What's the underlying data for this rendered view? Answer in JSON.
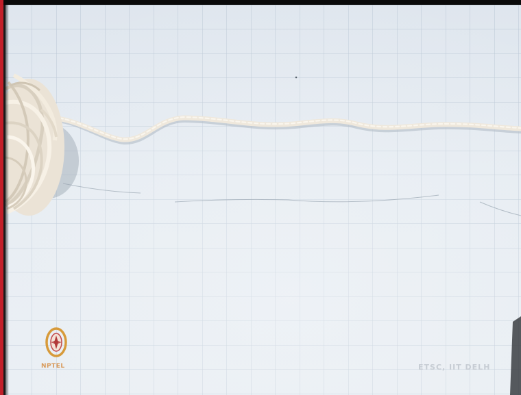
{
  "watermark": {
    "text": "ETSC, IIT DELH"
  },
  "logo": {
    "label": "NPTEL",
    "icon": "nptel-logo-icon"
  },
  "colors": {
    "paper": "#e6ecf2",
    "grid": "#b9c6d4",
    "string": "#efe8dc",
    "accent_bar": "#c2202a"
  }
}
